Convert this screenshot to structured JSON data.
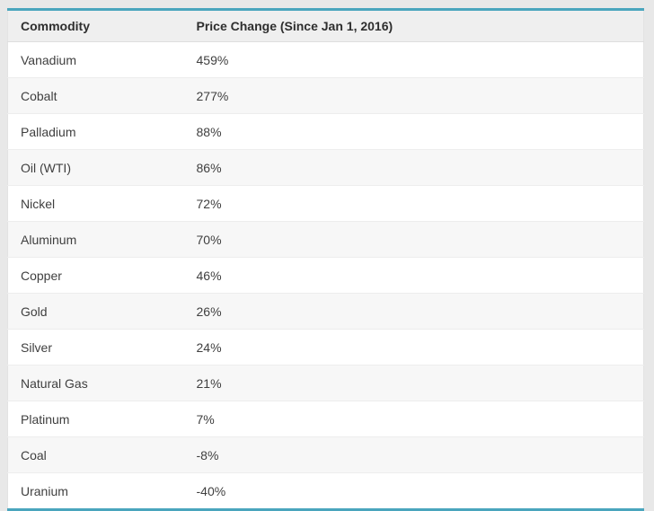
{
  "page": {
    "background_color": "#e8e8e8"
  },
  "table": {
    "accent_color": "#4aa5bd",
    "header_background": "#efefef",
    "zebra_row_background": "#f7f7f7",
    "columns": [
      "Commodity",
      "Price Change (Since Jan 1, 2016)"
    ],
    "rows": [
      {
        "commodity": "Vanadium",
        "change": "459%"
      },
      {
        "commodity": "Cobalt",
        "change": "277%"
      },
      {
        "commodity": "Palladium",
        "change": "88%"
      },
      {
        "commodity": "Oil (WTI)",
        "change": "86%"
      },
      {
        "commodity": "Nickel",
        "change": "72%"
      },
      {
        "commodity": "Aluminum",
        "change": "70%"
      },
      {
        "commodity": "Copper",
        "change": "46%"
      },
      {
        "commodity": "Gold",
        "change": "26%"
      },
      {
        "commodity": "Silver",
        "change": "24%"
      },
      {
        "commodity": "Natural Gas",
        "change": "21%"
      },
      {
        "commodity": "Platinum",
        "change": "7%"
      },
      {
        "commodity": "Coal",
        "change": "-8%"
      },
      {
        "commodity": "Uranium",
        "change": "-40%"
      }
    ]
  },
  "chart_data": {
    "type": "table",
    "title": "Commodity Price Change (Since Jan 1, 2016)",
    "columns": [
      "Commodity",
      "Price Change (Since Jan 1, 2016)"
    ],
    "categories": [
      "Vanadium",
      "Cobalt",
      "Palladium",
      "Oil (WTI)",
      "Nickel",
      "Aluminum",
      "Copper",
      "Gold",
      "Silver",
      "Natural Gas",
      "Platinum",
      "Coal",
      "Uranium"
    ],
    "values_percent": [
      459,
      277,
      88,
      86,
      72,
      70,
      46,
      26,
      24,
      21,
      7,
      -8,
      -40
    ],
    "value_unit": "%"
  }
}
